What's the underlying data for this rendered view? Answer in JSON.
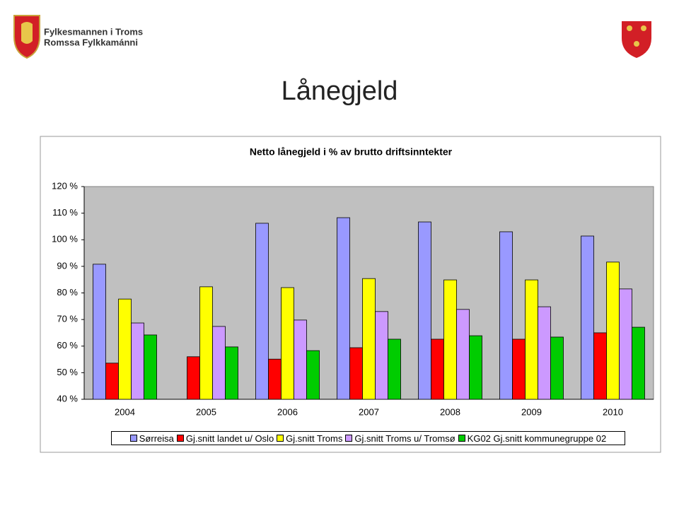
{
  "header": {
    "org_line_1": "Fylkesmannen i Troms",
    "org_line_2": "Romssa Fylkkamánni"
  },
  "slide_title": "Lånegjeld",
  "chart_data": {
    "type": "bar",
    "title": "Netto lånegjeld i % av brutto driftsinntekter",
    "categories": [
      "2004",
      "2005",
      "2006",
      "2007",
      "2008",
      "2009",
      "2010"
    ],
    "series": [
      {
        "name": "Sørreisa",
        "color": "#9999ff",
        "values": [
          90.8,
          null,
          106.2,
          108.3,
          106.7,
          103.0,
          101.4
        ]
      },
      {
        "name": "Gj.snitt landet u/ Oslo",
        "color": "#ff0000",
        "values": [
          53.6,
          56.0,
          55.1,
          59.4,
          62.6,
          62.6,
          65.0
        ]
      },
      {
        "name": "Gj.snitt Troms",
        "color": "#ffff00",
        "values": [
          77.7,
          82.3,
          82.0,
          85.4,
          84.9,
          84.9,
          91.6
        ]
      },
      {
        "name": "Gj.snitt Troms u/ Tromsø",
        "color": "#cc99ff",
        "values": [
          68.7,
          67.4,
          69.8,
          73.0,
          73.8,
          74.8,
          81.5
        ]
      },
      {
        "name": "KG02 Gj.snitt kommunegruppe 02",
        "color": "#00cc00",
        "values": [
          64.2,
          59.7,
          58.3,
          62.6,
          63.9,
          63.4,
          67.1
        ]
      }
    ],
    "ylim": [
      40,
      120
    ],
    "yticks": [
      {
        "value": 40,
        "label": "40 %"
      },
      {
        "value": 50,
        "label": "50 %"
      },
      {
        "value": 60,
        "label": "60 %"
      },
      {
        "value": 70,
        "label": "70 %"
      },
      {
        "value": 80,
        "label": "80 %"
      },
      {
        "value": 90,
        "label": "90 %"
      },
      {
        "value": 100,
        "label": "100 %"
      },
      {
        "value": 110,
        "label": "110 %"
      },
      {
        "value": 120,
        "label": "120 %"
      }
    ],
    "legend": "bottom"
  }
}
